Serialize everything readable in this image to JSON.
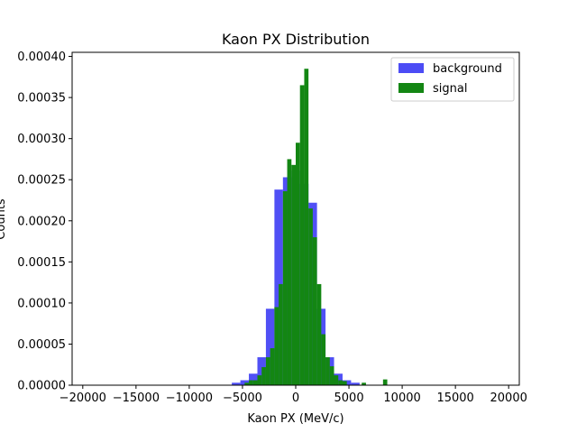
{
  "chart_data": {
    "type": "bar",
    "title": "Kaon PX Distribution",
    "xlabel": "Kaon PX (MeV/c)",
    "ylabel": "Counts",
    "xlim": [
      -21000,
      21000
    ],
    "ylim": [
      0,
      0.000405
    ],
    "xticks": [
      -20000,
      -15000,
      -10000,
      -5000,
      0,
      5000,
      10000,
      15000,
      20000
    ],
    "xtick_labels": [
      "−20000",
      "−15000",
      "−10000",
      "−5000",
      "0",
      "5000",
      "10000",
      "15000",
      "20000"
    ],
    "yticks": [
      0,
      5e-05,
      0.0001,
      0.00015,
      0.0002,
      0.00025,
      0.0003,
      0.00035,
      0.0004
    ],
    "ytick_labels": [
      "0.00000",
      "0.00005",
      "0.00010",
      "0.00015",
      "0.00020",
      "0.00025",
      "0.00030",
      "0.00035",
      "0.00040"
    ],
    "legend_position": "top-right",
    "series": [
      {
        "name": "background",
        "color": "#4c4cf5",
        "bins": [
          {
            "x0": -6000,
            "x1": -5200,
            "y": 3e-06
          },
          {
            "x0": -5200,
            "x1": -4400,
            "y": 6e-06
          },
          {
            "x0": -4400,
            "x1": -3600,
            "y": 1.4e-05
          },
          {
            "x0": -3600,
            "x1": -2800,
            "y": 3.4e-05
          },
          {
            "x0": -2800,
            "x1": -2000,
            "y": 9.3e-05
          },
          {
            "x0": -2000,
            "x1": -1200,
            "y": 0.000238
          },
          {
            "x0": -1200,
            "x1": -400,
            "y": 0.000253
          },
          {
            "x0": -400,
            "x1": 400,
            "y": 0.000261
          },
          {
            "x0": 400,
            "x1": 1200,
            "y": 0.000245
          },
          {
            "x0": 1200,
            "x1": 2000,
            "y": 0.000222
          },
          {
            "x0": 2000,
            "x1": 2800,
            "y": 9.3e-05
          },
          {
            "x0": 2800,
            "x1": 3600,
            "y": 3.4e-05
          },
          {
            "x0": 3600,
            "x1": 4400,
            "y": 1.4e-05
          },
          {
            "x0": 4400,
            "x1": 5200,
            "y": 6e-06
          },
          {
            "x0": 5200,
            "x1": 6000,
            "y": 3e-06
          }
        ]
      },
      {
        "name": "signal",
        "color": "#138613",
        "bins": [
          {
            "x0": -4800,
            "x1": -4400,
            "y": 3e-06
          },
          {
            "x0": -4400,
            "x1": -4000,
            "y": 6e-06
          },
          {
            "x0": -4000,
            "x1": -3600,
            "y": 6e-06
          },
          {
            "x0": -3600,
            "x1": -3200,
            "y": 1.2e-05
          },
          {
            "x0": -3200,
            "x1": -2800,
            "y": 2.2e-05
          },
          {
            "x0": -2800,
            "x1": -2400,
            "y": 3.4e-05
          },
          {
            "x0": -2400,
            "x1": -2000,
            "y": 4.5e-05
          },
          {
            "x0": -2000,
            "x1": -1600,
            "y": 9.5e-05
          },
          {
            "x0": -1600,
            "x1": -1200,
            "y": 0.000123
          },
          {
            "x0": -1200,
            "x1": -800,
            "y": 0.000236
          },
          {
            "x0": -800,
            "x1": -400,
            "y": 0.000275
          },
          {
            "x0": -400,
            "x1": 0,
            "y": 0.000268
          },
          {
            "x0": 0,
            "x1": 400,
            "y": 0.000295
          },
          {
            "x0": 400,
            "x1": 800,
            "y": 0.000365
          },
          {
            "x0": 800,
            "x1": 1200,
            "y": 0.000385
          },
          {
            "x0": 1200,
            "x1": 1600,
            "y": 0.000215
          },
          {
            "x0": 1600,
            "x1": 2000,
            "y": 0.00018
          },
          {
            "x0": 2000,
            "x1": 2400,
            "y": 0.000123
          },
          {
            "x0": 2400,
            "x1": 2800,
            "y": 6.2e-05
          },
          {
            "x0": 2800,
            "x1": 3200,
            "y": 3.4e-05
          },
          {
            "x0": 3200,
            "x1": 3600,
            "y": 2.3e-05
          },
          {
            "x0": 3600,
            "x1": 4000,
            "y": 1.2e-05
          },
          {
            "x0": 4000,
            "x1": 4400,
            "y": 6e-06
          },
          {
            "x0": 4400,
            "x1": 4800,
            "y": 5e-06
          },
          {
            "x0": 6200,
            "x1": 6600,
            "y": 3e-06
          },
          {
            "x0": 8200,
            "x1": 8600,
            "y": 7e-06
          }
        ]
      }
    ]
  }
}
